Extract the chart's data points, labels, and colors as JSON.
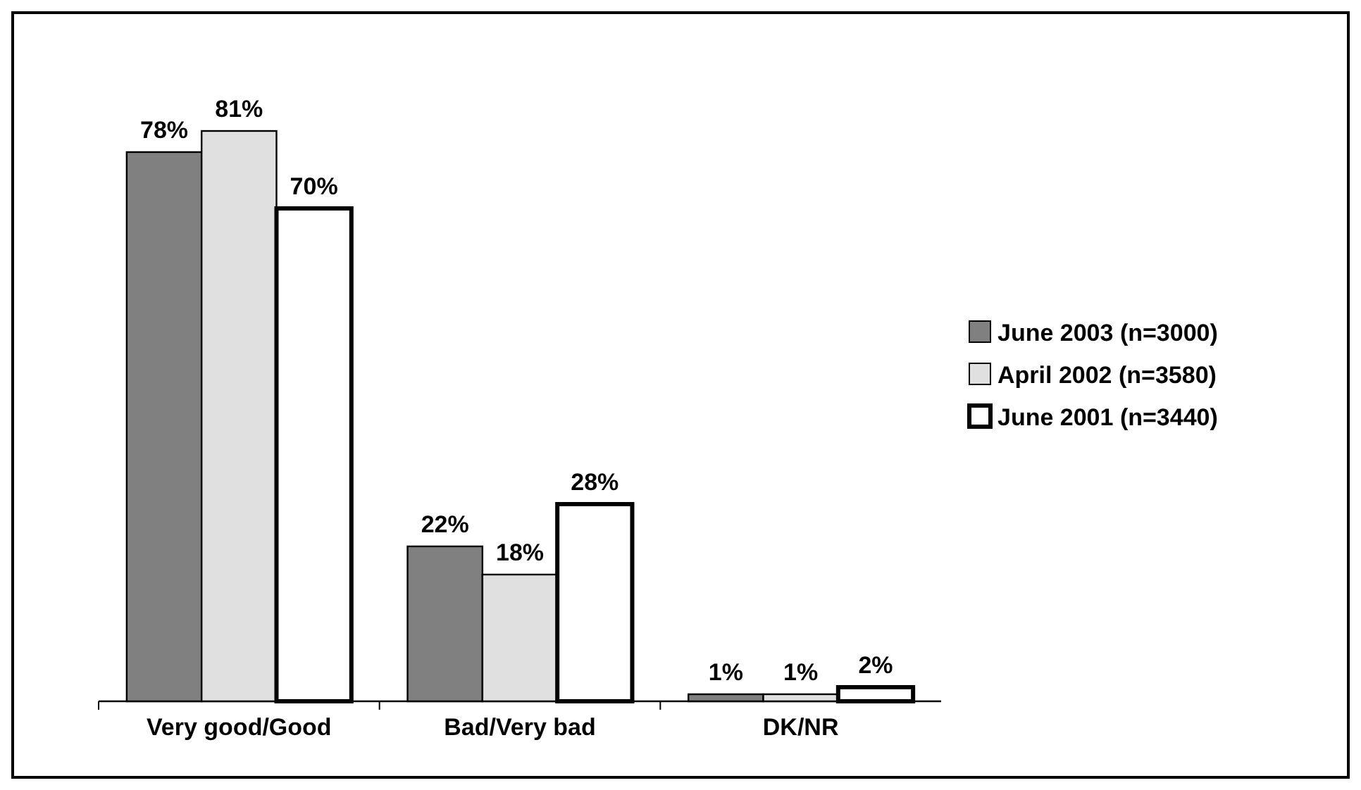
{
  "chart_data": {
    "type": "bar",
    "categories": [
      "Very good/Good",
      "Bad/Very bad",
      "DK/NR"
    ],
    "series": [
      {
        "name": "June 2003 (n=3000)",
        "color": "#808080",
        "values": [
          78,
          22,
          1
        ],
        "value_labels": [
          "78%",
          "22%",
          "1%"
        ]
      },
      {
        "name": "April 2002 (n=3580)",
        "color": "#e0e0e0",
        "values": [
          81,
          18,
          1
        ],
        "value_labels": [
          "81%",
          "18%",
          "1%"
        ]
      },
      {
        "name": "June 2001 (n=3440)",
        "color": "#ffffff",
        "values": [
          70,
          28,
          2
        ],
        "value_labels": [
          "70%",
          "28%",
          "2%"
        ]
      }
    ],
    "legend": "right"
  }
}
